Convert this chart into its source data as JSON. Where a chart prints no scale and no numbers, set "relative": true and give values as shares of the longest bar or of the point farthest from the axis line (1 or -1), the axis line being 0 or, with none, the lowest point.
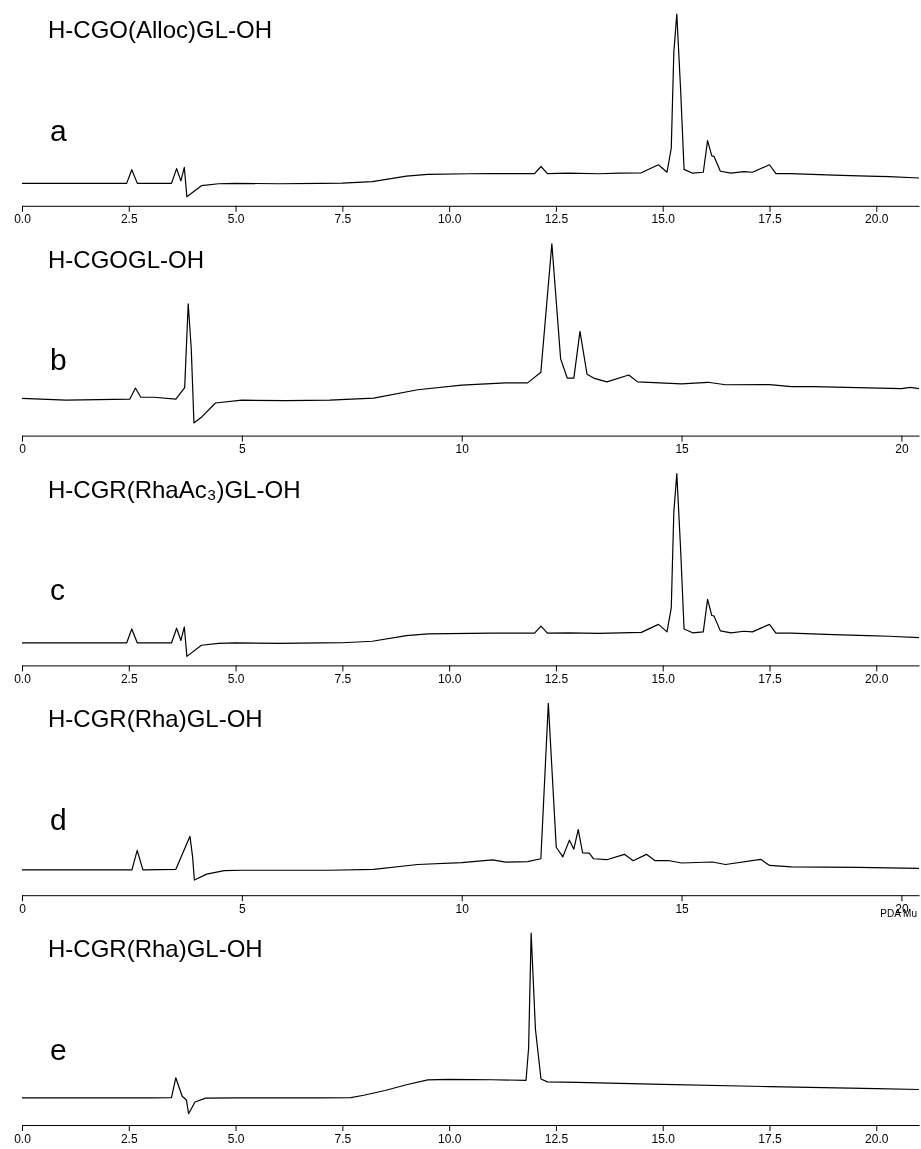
{
  "chart_data": [
    {
      "type": "line",
      "relative": true,
      "title": "H-CGO(Alloc)GL-OH",
      "subtitle": "a",
      "xlim": [
        0,
        21
      ],
      "xticks": [
        {
          "value": 0,
          "label": "0.0"
        },
        {
          "value": 2.5,
          "label": "2.5"
        },
        {
          "value": 5,
          "label": "5.0"
        },
        {
          "value": 7.5,
          "label": "7.5"
        },
        {
          "value": 10,
          "label": "10.0"
        },
        {
          "value": 12.5,
          "label": "12.5"
        },
        {
          "value": 15,
          "label": "15.0"
        },
        {
          "value": 17.5,
          "label": "17.5"
        },
        {
          "value": 20,
          "label": "20.0"
        }
      ],
      "x": [
        0,
        2.45,
        2.57,
        2.7,
        3.5,
        3.62,
        3.72,
        3.8,
        3.86,
        4.2,
        4.6,
        5,
        6,
        7,
        7.5,
        8.2,
        9,
        9.5,
        10.5,
        11,
        12,
        12.15,
        12.3,
        12.8,
        13.5,
        14,
        14.5,
        14.9,
        15.1,
        15.2,
        15.26,
        15.33,
        15.42,
        15.5,
        15.7,
        15.95,
        16.05,
        16.15,
        16.2,
        16.35,
        16.6,
        16.9,
        17.1,
        17.5,
        17.65,
        18,
        19,
        19.8,
        20.3,
        21
      ],
      "series": [
        {
          "color": "#000000",
          "values": [
            0.117,
            0.117,
            0.188,
            0.117,
            0.117,
            0.194,
            0.13,
            0.2,
            0.047,
            0.105,
            0.115,
            0.117,
            0.115,
            0.117,
            0.118,
            0.126,
            0.155,
            0.164,
            0.167,
            0.168,
            0.168,
            0.205,
            0.168,
            0.17,
            0.167,
            0.17,
            0.172,
            0.214,
            0.175,
            0.3,
            0.8,
            1,
            0.6,
            0.19,
            0.17,
            0.175,
            0.34,
            0.26,
            0.258,
            0.18,
            0.17,
            0.178,
            0.175,
            0.214,
            0.168,
            0.168,
            0.16,
            0.155,
            0.152,
            0.145
          ]
        }
      ]
    },
    {
      "type": "line",
      "relative": true,
      "title": "H-CGOGL-OH",
      "subtitle": "b",
      "xlim": [
        0,
        20.4
      ],
      "xticks": [
        0,
        5,
        10,
        15,
        20
      ],
      "x": [
        0,
        1,
        2.45,
        2.58,
        2.7,
        3,
        3.5,
        3.7,
        3.78,
        3.85,
        3.91,
        4.1,
        4.4,
        5,
        6,
        7,
        8,
        9,
        10,
        11,
        11.5,
        11.8,
        12.05,
        12.25,
        12.4,
        12.55,
        12.69,
        12.85,
        13,
        13.3,
        13.8,
        14,
        15,
        15.6,
        16,
        17,
        17.5,
        18,
        19,
        20,
        20.2,
        20.4
      ],
      "series": [
        {
          "color": "#000000",
          "values": [
            0.194,
            0.185,
            0.19,
            0.248,
            0.2,
            0.2,
            0.19,
            0.25,
            0.687,
            0.45,
            0.066,
            0.1,
            0.17,
            0.185,
            0.182,
            0.185,
            0.195,
            0.239,
            0.263,
            0.275,
            0.275,
            0.33,
            1,
            0.4,
            0.3,
            0.3,
            0.543,
            0.32,
            0.3,
            0.28,
            0.316,
            0.28,
            0.27,
            0.278,
            0.265,
            0.266,
            0.255,
            0.255,
            0.25,
            0.245,
            0.251,
            0.245
          ]
        }
      ]
    },
    {
      "type": "line",
      "relative": true,
      "title": "H-CGR(RhaAc₃)GL-OH",
      "subtitle": "c",
      "xlim": [
        0,
        21
      ],
      "xticks": [
        {
          "value": 0,
          "label": "0.0"
        },
        {
          "value": 2.5,
          "label": "2.5"
        },
        {
          "value": 5,
          "label": "5.0"
        },
        {
          "value": 7.5,
          "label": "7.5"
        },
        {
          "value": 10,
          "label": "10.0"
        },
        {
          "value": 12.5,
          "label": "12.5"
        },
        {
          "value": 15,
          "label": "15.0"
        },
        {
          "value": 17.5,
          "label": "17.5"
        },
        {
          "value": 20,
          "label": "20.0"
        }
      ],
      "x": [
        0,
        2.45,
        2.57,
        2.7,
        3.5,
        3.62,
        3.72,
        3.8,
        3.86,
        4.2,
        4.6,
        5,
        6,
        7,
        7.5,
        8.2,
        9,
        9.5,
        10.5,
        11,
        12,
        12.15,
        12.3,
        12.8,
        13.5,
        14,
        14.5,
        14.9,
        15.1,
        15.2,
        15.26,
        15.33,
        15.42,
        15.5,
        15.7,
        15.95,
        16.05,
        16.15,
        16.2,
        16.35,
        16.6,
        16.9,
        17.1,
        17.5,
        17.65,
        18,
        19,
        19.8,
        20.3,
        21
      ],
      "series": [
        {
          "color": "#000000",
          "values": [
            0.117,
            0.117,
            0.19,
            0.117,
            0.117,
            0.194,
            0.13,
            0.2,
            0.047,
            0.105,
            0.115,
            0.117,
            0.115,
            0.117,
            0.118,
            0.126,
            0.155,
            0.164,
            0.167,
            0.168,
            0.168,
            0.205,
            0.168,
            0.17,
            0.167,
            0.17,
            0.172,
            0.214,
            0.175,
            0.3,
            0.8,
            1,
            0.6,
            0.19,
            0.17,
            0.175,
            0.344,
            0.26,
            0.258,
            0.18,
            0.17,
            0.178,
            0.175,
            0.214,
            0.168,
            0.168,
            0.16,
            0.155,
            0.152,
            0.145
          ]
        }
      ]
    },
    {
      "type": "line",
      "relative": true,
      "title": "H-CGR(Rha)GL-OH",
      "subtitle": "d",
      "annotations": [
        "PDA Mu"
      ],
      "xlim": [
        0,
        20.4
      ],
      "xticks": [
        0,
        5,
        10,
        15,
        20
      ],
      "x": [
        0,
        2.5,
        2.62,
        2.75,
        3.5,
        3.82,
        3.88,
        3.92,
        4.2,
        4.6,
        5,
        7,
        8,
        9,
        10,
        10.7,
        11,
        11.5,
        11.8,
        11.97,
        12.15,
        12.3,
        12.45,
        12.55,
        12.65,
        12.75,
        12.9,
        13,
        13.3,
        13.7,
        13.9,
        14.2,
        14.4,
        14.7,
        15,
        15.7,
        16,
        16.8,
        17,
        17.5,
        19,
        20.4
      ],
      "series": [
        {
          "color": "#000000",
          "values": [
            0.132,
            0.132,
            0.234,
            0.132,
            0.135,
            0.307,
            0.2,
            0.079,
            0.11,
            0.128,
            0.13,
            0.13,
            0.135,
            0.16,
            0.17,
            0.184,
            0.172,
            0.175,
            0.19,
            1,
            0.25,
            0.2,
            0.287,
            0.24,
            0.342,
            0.22,
            0.219,
            0.19,
            0.185,
            0.213,
            0.18,
            0.213,
            0.18,
            0.181,
            0.168,
            0.173,
            0.16,
            0.187,
            0.155,
            0.148,
            0.145,
            0.14
          ]
        }
      ]
    },
    {
      "type": "line",
      "relative": true,
      "title": "H-CGR(Rha)GL-OH",
      "subtitle": "e",
      "xlim": [
        0,
        21
      ],
      "xticks": [
        {
          "value": 0,
          "label": "0.0"
        },
        {
          "value": 2.5,
          "label": "2.5"
        },
        {
          "value": 5,
          "label": "5.0"
        },
        {
          "value": 7.5,
          "label": "7.5"
        },
        {
          "value": 10,
          "label": "10.0"
        },
        {
          "value": 12.5,
          "label": "12.5"
        },
        {
          "value": 15,
          "label": "15.0"
        },
        {
          "value": 17.5,
          "label": "17.5"
        },
        {
          "value": 20,
          "label": "20.0"
        }
      ],
      "x": [
        0,
        3,
        3.5,
        3.6,
        3.75,
        3.85,
        3.9,
        4.05,
        4.3,
        5,
        7,
        7.7,
        8,
        8.5,
        9,
        9.5,
        10,
        11,
        11.8,
        11.86,
        11.92,
        12.02,
        12.15,
        12.3,
        13,
        15,
        17.5,
        20,
        21
      ],
      "series": [
        {
          "color": "#000000",
          "values": [
            0.141,
            0.141,
            0.143,
            0.246,
            0.15,
            0.13,
            0.059,
            0.12,
            0.14,
            0.141,
            0.141,
            0.143,
            0.155,
            0.18,
            0.21,
            0.235,
            0.238,
            0.236,
            0.233,
            0.4,
            1,
            0.5,
            0.24,
            0.225,
            0.222,
            0.212,
            0.2,
            0.19,
            0.185
          ]
        }
      ]
    }
  ]
}
